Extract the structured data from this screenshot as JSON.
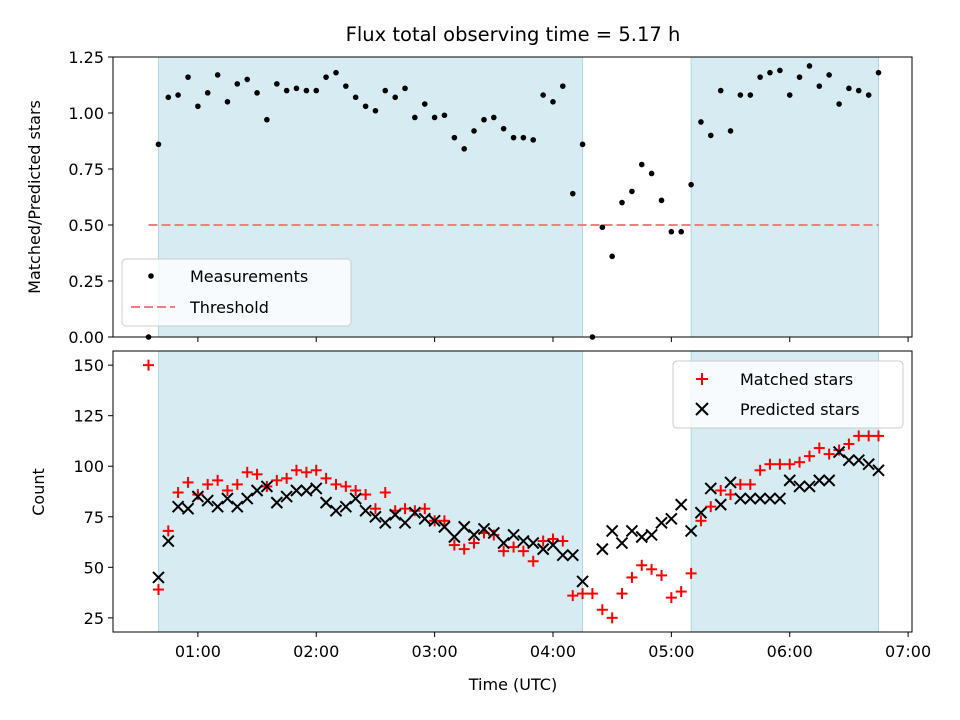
{
  "chart_data": {
    "title": "Flux total observing time = 5.17 h",
    "xlabel": "Time (UTC)",
    "x_ticks": [
      "01:00",
      "02:00",
      "03:00",
      "04:00",
      "05:00",
      "06:00",
      "07:00"
    ],
    "x_tick_hours": [
      1,
      2,
      3,
      4,
      5,
      6,
      7
    ],
    "xlim_hours": [
      0.283,
      7.033
    ],
    "shaded_intervals_hours": [
      [
        0.667,
        4.25
      ],
      [
        5.167,
        6.75
      ]
    ],
    "shade_color": "#add8e6",
    "top": {
      "type": "scatter",
      "ylabel": "Matched/Predicted stars",
      "ylim": [
        0,
        1.25
      ],
      "y_ticks": [
        "0.00",
        "0.25",
        "0.50",
        "0.75",
        "1.00",
        "1.25"
      ],
      "y_tick_values": [
        0,
        0.25,
        0.5,
        0.75,
        1.0,
        1.25
      ],
      "threshold": {
        "name": "Threshold",
        "value": 0.5,
        "x_range_hours": [
          0.583,
          6.75
        ],
        "color": "#f08080"
      },
      "measurements": {
        "name": "Measurements",
        "color": "#000000",
        "x": [
          0.583,
          0.667,
          0.75,
          0.833,
          0.917,
          1.0,
          1.083,
          1.167,
          1.25,
          1.333,
          1.417,
          1.5,
          1.583,
          1.667,
          1.75,
          1.833,
          1.917,
          2.0,
          2.083,
          2.167,
          2.25,
          2.333,
          2.417,
          2.5,
          2.583,
          2.667,
          2.75,
          2.833,
          2.917,
          3.0,
          3.083,
          3.167,
          3.25,
          3.333,
          3.417,
          3.5,
          3.583,
          3.667,
          3.75,
          3.833,
          3.917,
          4.0,
          4.083,
          4.167,
          4.25,
          4.333,
          4.417,
          4.5,
          4.583,
          4.667,
          4.75,
          4.833,
          4.917,
          5.0,
          5.083,
          5.167,
          5.25,
          5.333,
          5.417,
          5.5,
          5.583,
          5.667,
          5.75,
          5.833,
          5.917,
          6.0,
          6.083,
          6.167,
          6.25,
          6.333,
          6.417,
          6.5,
          6.583,
          6.667,
          6.75
        ],
        "y": [
          0.0,
          0.86,
          1.07,
          1.08,
          1.16,
          1.03,
          1.09,
          1.17,
          1.05,
          1.13,
          1.15,
          1.09,
          0.97,
          1.13,
          1.1,
          1.11,
          1.1,
          1.1,
          1.16,
          1.18,
          1.12,
          1.07,
          1.03,
          1.01,
          1.1,
          1.07,
          1.11,
          0.98,
          1.04,
          0.98,
          0.99,
          0.89,
          0.84,
          0.92,
          0.97,
          0.98,
          0.93,
          0.89,
          0.89,
          0.88,
          1.08,
          1.05,
          1.12,
          0.64,
          0.86,
          0.0,
          0.49,
          0.36,
          0.6,
          0.65,
          0.77,
          0.73,
          0.61,
          0.47,
          0.47,
          0.68,
          0.96,
          0.9,
          1.1,
          0.92,
          1.08,
          1.08,
          1.16,
          1.18,
          1.19,
          1.08,
          1.16,
          1.21,
          1.12,
          1.17,
          1.04,
          1.11,
          1.1,
          1.08,
          1.18
        ]
      }
    },
    "bottom": {
      "type": "scatter",
      "ylabel": "Count",
      "ylim": [
        18,
        157
      ],
      "y_ticks": [
        "25",
        "50",
        "75",
        "100",
        "125",
        "150"
      ],
      "y_tick_values": [
        25,
        50,
        75,
        100,
        125,
        150
      ],
      "matched": {
        "name": "Matched stars",
        "color": "#ff0000",
        "x": [
          0.583,
          0.667,
          0.75,
          0.833,
          0.917,
          1.0,
          1.083,
          1.167,
          1.25,
          1.333,
          1.417,
          1.5,
          1.583,
          1.667,
          1.75,
          1.833,
          1.917,
          2.0,
          2.083,
          2.167,
          2.25,
          2.333,
          2.417,
          2.5,
          2.583,
          2.667,
          2.75,
          2.833,
          2.917,
          3.0,
          3.083,
          3.167,
          3.25,
          3.333,
          3.417,
          3.5,
          3.583,
          3.667,
          3.75,
          3.833,
          3.917,
          4.0,
          4.083,
          4.167,
          4.25,
          4.333,
          4.417,
          4.5,
          4.583,
          4.667,
          4.75,
          4.833,
          4.917,
          5.0,
          5.083,
          5.167,
          5.25,
          5.333,
          5.417,
          5.5,
          5.583,
          5.667,
          5.75,
          5.833,
          5.917,
          6.0,
          6.083,
          6.167,
          6.25,
          6.333,
          6.417,
          6.5,
          6.583,
          6.667,
          6.75
        ],
        "y": [
          150,
          39,
          68,
          87,
          92,
          86,
          91,
          93,
          88,
          91,
          97,
          96,
          90,
          93,
          94,
          98,
          97,
          98,
          94,
          91,
          90,
          88,
          86,
          79,
          87,
          78,
          79,
          78,
          79,
          73,
          73,
          61,
          59,
          62,
          67,
          66,
          58,
          60,
          58,
          53,
          63,
          64,
          63,
          36,
          37,
          37,
          29,
          25,
          37,
          45,
          51,
          49,
          46,
          35,
          38,
          47,
          73,
          80,
          88,
          86,
          91,
          91,
          98,
          101,
          101,
          101,
          102,
          105,
          109,
          106,
          108,
          111,
          115,
          115,
          115
        ]
      },
      "predicted": {
        "name": "Predicted stars",
        "color": "#000000",
        "x": [
          0.667,
          0.75,
          0.833,
          0.917,
          1.0,
          1.083,
          1.167,
          1.25,
          1.333,
          1.417,
          1.5,
          1.583,
          1.667,
          1.75,
          1.833,
          1.917,
          2.0,
          2.083,
          2.167,
          2.25,
          2.333,
          2.417,
          2.5,
          2.583,
          2.667,
          2.75,
          2.833,
          2.917,
          3.0,
          3.083,
          3.167,
          3.25,
          3.333,
          3.417,
          3.5,
          3.583,
          3.667,
          3.75,
          3.833,
          3.917,
          4.0,
          4.083,
          4.167,
          4.25,
          4.417,
          4.5,
          4.583,
          4.667,
          4.75,
          4.833,
          4.917,
          5.0,
          5.083,
          5.167,
          5.25,
          5.333,
          5.417,
          5.5,
          5.583,
          5.667,
          5.75,
          5.833,
          5.917,
          6.0,
          6.083,
          6.167,
          6.25,
          6.333,
          6.417,
          6.5,
          6.583,
          6.667,
          6.75
        ],
        "y": [
          45,
          63,
          80,
          79,
          85,
          83,
          80,
          84,
          80,
          84,
          88,
          90,
          82,
          85,
          88,
          88,
          89,
          82,
          78,
          80,
          84,
          78,
          75,
          72,
          76,
          72,
          77,
          74,
          73,
          70,
          65,
          70,
          66,
          69,
          67,
          62,
          66,
          63,
          62,
          59,
          61,
          56,
          56,
          43,
          59,
          68,
          62,
          68,
          65,
          66,
          72,
          74,
          81,
          68,
          77,
          89,
          81,
          92,
          84,
          84,
          84,
          84,
          84,
          93,
          90,
          90,
          93,
          93,
          107,
          103,
          103,
          101,
          98
        ]
      }
    }
  }
}
